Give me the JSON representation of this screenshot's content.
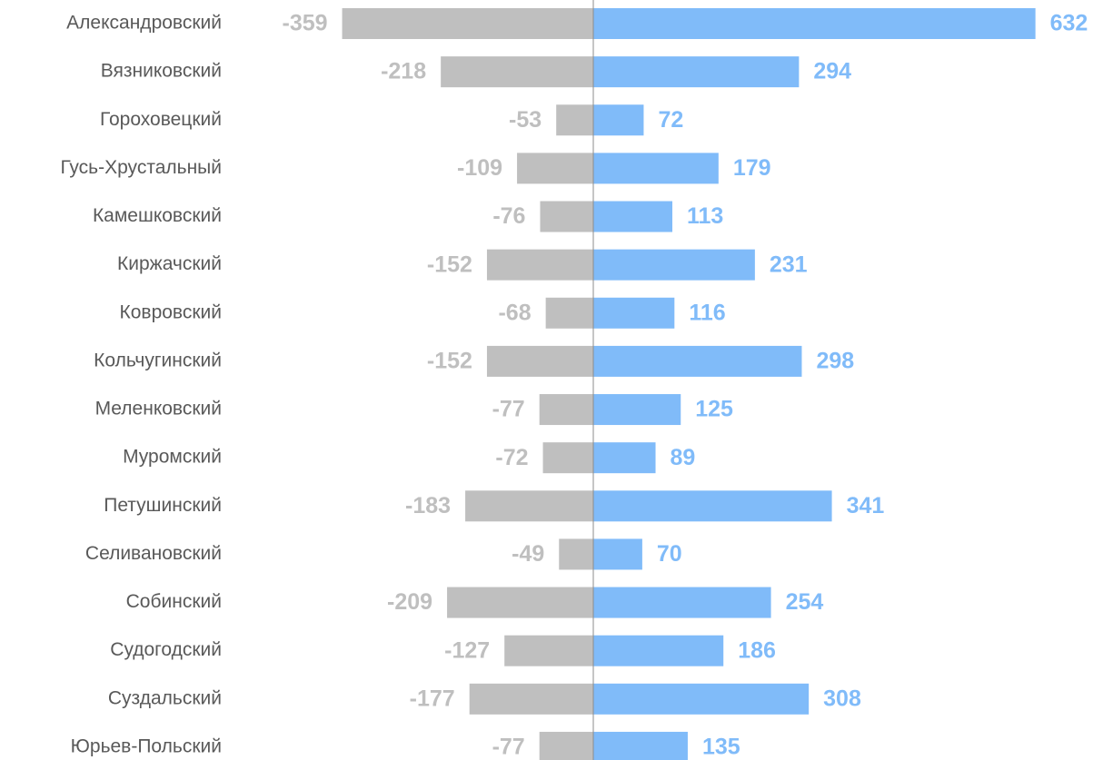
{
  "chart_data": {
    "type": "bar",
    "orientation": "horizontal",
    "categories": [
      "Александровский",
      "Вязниковский",
      "Гороховецкий",
      "Гусь-Хрустальный",
      "Камешковский",
      "Киржачский",
      "Ковровский",
      "Кольчугинский",
      "Меленковский",
      "Муромский",
      "Петушинский",
      "Селивановский",
      "Собинский",
      "Судогодский",
      "Суздальский",
      "Юрьев-Польский"
    ],
    "series": [
      {
        "color": "#bfbfbf",
        "values": [
          -359,
          -218,
          -53,
          -109,
          -76,
          -152,
          -68,
          -152,
          -77,
          -72,
          -183,
          -49,
          -209,
          -127,
          -177,
          -77
        ]
      },
      {
        "color": "#80bbf9",
        "values": [
          632,
          294,
          72,
          179,
          113,
          231,
          116,
          298,
          125,
          89,
          341,
          70,
          254,
          186,
          308,
          135
        ]
      }
    ],
    "xlim": [
      -500,
      700
    ],
    "grid": false
  }
}
